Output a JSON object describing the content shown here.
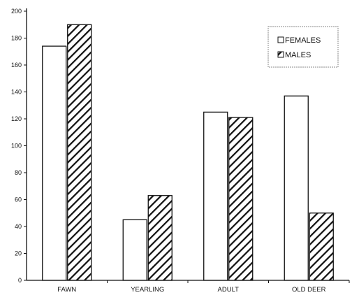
{
  "chart_data": {
    "type": "bar",
    "categories": [
      "FAWN",
      "YEARLING",
      "ADULT",
      "OLD DEER"
    ],
    "series": [
      {
        "name": "FEMALES",
        "values": [
          174,
          45,
          125,
          137
        ],
        "fill": "#ffffff"
      },
      {
        "name": "MALES",
        "values": [
          190,
          63,
          121,
          50
        ],
        "fill": "hatched"
      }
    ],
    "ylim": [
      0,
      200
    ],
    "yticks": [
      0,
      20,
      40,
      60,
      80,
      100,
      120,
      140,
      160,
      180,
      200
    ],
    "grid": false,
    "legend_position": "top-right",
    "colors": {
      "bar_outline": "#111111",
      "hatch": "#111111",
      "background": "#ffffff"
    }
  }
}
